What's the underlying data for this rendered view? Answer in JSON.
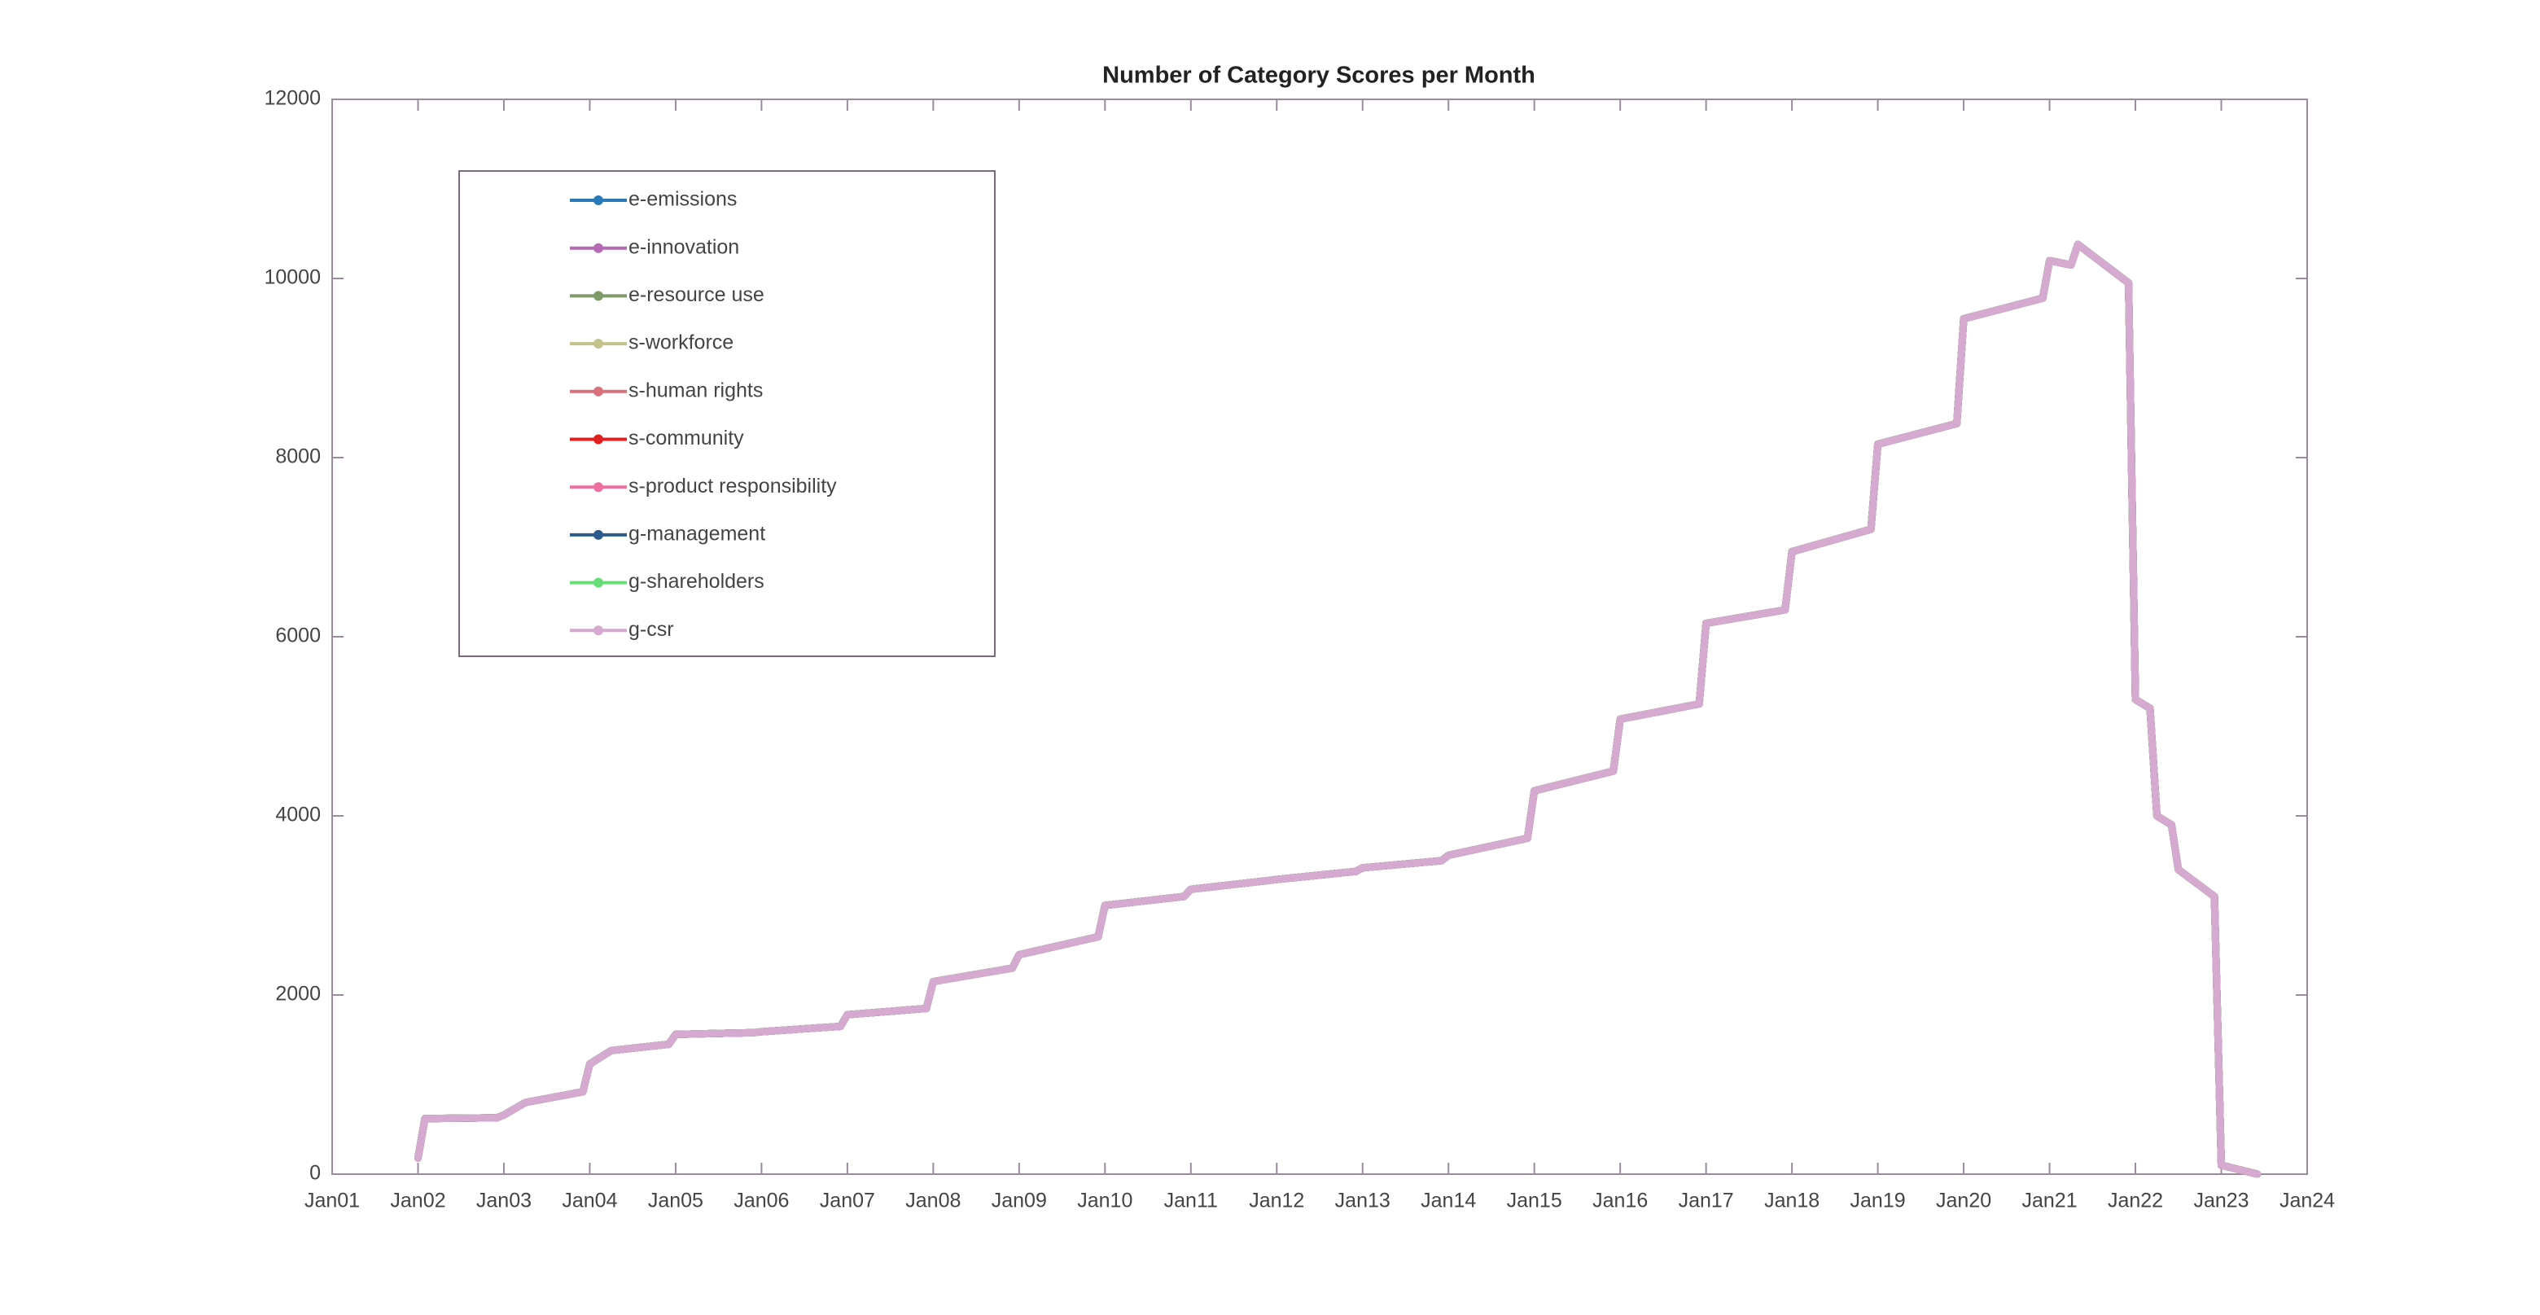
{
  "chart_data": {
    "type": "line",
    "title": "Number of  Category Scores per Month",
    "x": [
      2002.0,
      2002.08,
      2002.92,
      2003.0,
      2003.25,
      2003.92,
      2004.0,
      2004.25,
      2004.92,
      2005.0,
      2005.92,
      2006.0,
      2006.92,
      2007.0,
      2007.92,
      2008.0,
      2008.92,
      2009.0,
      2009.92,
      2010.0,
      2010.92,
      2011.0,
      2011.92,
      2012.0,
      2012.92,
      2013.0,
      2013.92,
      2014.0,
      2014.92,
      2015.0,
      2015.92,
      2016.0,
      2016.92,
      2017.0,
      2017.92,
      2018.0,
      2018.92,
      2019.0,
      2019.92,
      2020.0,
      2020.92,
      2021.0,
      2021.25,
      2021.33,
      2021.92,
      2022.0,
      2022.17,
      2022.25,
      2022.42,
      2022.5,
      2022.92,
      2023.0,
      2023.42
    ],
    "series": [
      {
        "name": "e-emissions",
        "color": "#2a7ab9",
        "values": [
          180,
          620,
          630,
          660,
          800,
          920,
          1230,
          1380,
          1450,
          1560,
          1580,
          1590,
          1650,
          1780,
          1850,
          2150,
          2300,
          2450,
          2650,
          3000,
          3100,
          3180,
          3280,
          3290,
          3380,
          3420,
          3500,
          3560,
          3750,
          4280,
          4500,
          5080,
          5250,
          6150,
          6300,
          6950,
          7200,
          8150,
          8380,
          9550,
          9780,
          10200,
          10150,
          10380,
          9950,
          5300,
          5200,
          4000,
          3900,
          3400,
          3100,
          100,
          0
        ]
      },
      {
        "name": "e-innovation",
        "color": "#b56bb3",
        "values": [
          180,
          620,
          630,
          660,
          800,
          920,
          1230,
          1380,
          1450,
          1560,
          1580,
          1590,
          1650,
          1780,
          1850,
          2150,
          2300,
          2450,
          2650,
          3000,
          3100,
          3180,
          3280,
          3290,
          3380,
          3420,
          3500,
          3560,
          3750,
          4280,
          4500,
          5080,
          5250,
          6150,
          6300,
          6950,
          7200,
          8150,
          8380,
          9550,
          9780,
          10200,
          10150,
          10380,
          9950,
          5300,
          5200,
          4000,
          3900,
          3400,
          3100,
          100,
          0
        ]
      },
      {
        "name": "e-resource use",
        "color": "#7f9a6a",
        "values": [
          180,
          620,
          630,
          660,
          800,
          920,
          1230,
          1380,
          1450,
          1560,
          1580,
          1590,
          1650,
          1780,
          1850,
          2150,
          2300,
          2450,
          2650,
          3000,
          3100,
          3180,
          3280,
          3290,
          3380,
          3420,
          3500,
          3560,
          3750,
          4280,
          4500,
          5080,
          5250,
          6150,
          6300,
          6950,
          7200,
          8150,
          8380,
          9550,
          9780,
          10200,
          10150,
          10380,
          9950,
          5300,
          5200,
          4000,
          3900,
          3400,
          3100,
          100,
          0
        ]
      },
      {
        "name": "s-workforce",
        "color": "#c4c38c",
        "values": [
          180,
          620,
          630,
          660,
          800,
          920,
          1230,
          1380,
          1450,
          1560,
          1580,
          1590,
          1650,
          1780,
          1850,
          2150,
          2300,
          2450,
          2650,
          3000,
          3100,
          3180,
          3280,
          3290,
          3380,
          3420,
          3500,
          3560,
          3750,
          4280,
          4500,
          5080,
          5250,
          6150,
          6300,
          6950,
          7200,
          8150,
          8380,
          9550,
          9780,
          10200,
          10150,
          10380,
          9950,
          5300,
          5200,
          4000,
          3900,
          3400,
          3100,
          100,
          0
        ]
      },
      {
        "name": "s-human rights",
        "color": "#d9707a",
        "values": [
          180,
          620,
          630,
          660,
          800,
          920,
          1230,
          1380,
          1450,
          1560,
          1580,
          1590,
          1650,
          1780,
          1850,
          2150,
          2300,
          2450,
          2650,
          3000,
          3100,
          3180,
          3280,
          3290,
          3380,
          3420,
          3500,
          3560,
          3750,
          4280,
          4500,
          5080,
          5250,
          6150,
          6300,
          6950,
          7200,
          8150,
          8380,
          9550,
          9780,
          10200,
          10150,
          10380,
          9950,
          5300,
          5200,
          4000,
          3900,
          3400,
          3100,
          100,
          0
        ]
      },
      {
        "name": "s-community",
        "color": "#e02020",
        "values": [
          180,
          620,
          630,
          660,
          800,
          920,
          1230,
          1380,
          1450,
          1560,
          1580,
          1590,
          1650,
          1780,
          1850,
          2150,
          2300,
          2450,
          2650,
          3000,
          3100,
          3180,
          3280,
          3290,
          3380,
          3420,
          3500,
          3560,
          3750,
          4280,
          4500,
          5080,
          5250,
          6150,
          6300,
          6950,
          7200,
          8150,
          8380,
          9550,
          9780,
          10200,
          10150,
          10380,
          9950,
          5300,
          5200,
          4000,
          3900,
          3400,
          3100,
          100,
          0
        ]
      },
      {
        "name": "s-product responsibility",
        "color": "#ee6fa0",
        "values": [
          180,
          620,
          630,
          660,
          800,
          920,
          1230,
          1380,
          1450,
          1560,
          1580,
          1590,
          1650,
          1780,
          1850,
          2150,
          2300,
          2450,
          2650,
          3000,
          3100,
          3180,
          3280,
          3290,
          3380,
          3420,
          3500,
          3560,
          3750,
          4280,
          4500,
          5080,
          5250,
          6150,
          6300,
          6950,
          7200,
          8150,
          8380,
          9550,
          9780,
          10200,
          10150,
          10380,
          9950,
          5300,
          5200,
          4000,
          3900,
          3400,
          3100,
          100,
          0
        ]
      },
      {
        "name": "g-management",
        "color": "#2b5b8c",
        "values": [
          180,
          620,
          630,
          660,
          800,
          920,
          1230,
          1380,
          1450,
          1560,
          1580,
          1590,
          1650,
          1780,
          1850,
          2150,
          2300,
          2450,
          2650,
          3000,
          3100,
          3180,
          3280,
          3290,
          3380,
          3420,
          3500,
          3560,
          3750,
          4280,
          4500,
          5080,
          5250,
          6150,
          6300,
          6950,
          7200,
          8150,
          8380,
          9550,
          9780,
          10200,
          10150,
          10380,
          9950,
          5300,
          5200,
          4000,
          3900,
          3400,
          3100,
          100,
          0
        ]
      },
      {
        "name": "g-shareholders",
        "color": "#66dd77",
        "values": [
          180,
          620,
          630,
          660,
          800,
          920,
          1230,
          1380,
          1450,
          1560,
          1580,
          1590,
          1650,
          1780,
          1850,
          2150,
          2300,
          2450,
          2650,
          3000,
          3100,
          3180,
          3280,
          3290,
          3380,
          3420,
          3500,
          3560,
          3750,
          4280,
          4500,
          5080,
          5250,
          6150,
          6300,
          6950,
          7200,
          8150,
          8380,
          9550,
          9780,
          10200,
          10150,
          10380,
          9950,
          5300,
          5200,
          4000,
          3900,
          3400,
          3100,
          100,
          0
        ]
      },
      {
        "name": "g-csr",
        "color": "#d6aad0",
        "values": [
          180,
          620,
          630,
          660,
          800,
          920,
          1230,
          1380,
          1450,
          1560,
          1580,
          1590,
          1650,
          1780,
          1850,
          2150,
          2300,
          2450,
          2650,
          3000,
          3100,
          3180,
          3280,
          3290,
          3380,
          3420,
          3500,
          3560,
          3750,
          4280,
          4500,
          5080,
          5250,
          6150,
          6300,
          6950,
          7200,
          8150,
          8380,
          9550,
          9780,
          10200,
          10150,
          10380,
          9950,
          5300,
          5200,
          4000,
          3900,
          3400,
          3100,
          100,
          0
        ]
      }
    ],
    "xlim": [
      2001,
      2024
    ],
    "xticks": [
      {
        "value": 2001,
        "label": "Jan01"
      },
      {
        "value": 2002,
        "label": "Jan02"
      },
      {
        "value": 2003,
        "label": "Jan03"
      },
      {
        "value": 2004,
        "label": "Jan04"
      },
      {
        "value": 2005,
        "label": "Jan05"
      },
      {
        "value": 2006,
        "label": "Jan06"
      },
      {
        "value": 2007,
        "label": "Jan07"
      },
      {
        "value": 2008,
        "label": "Jan08"
      },
      {
        "value": 2009,
        "label": "Jan09"
      },
      {
        "value": 2010,
        "label": "Jan10"
      },
      {
        "value": 2011,
        "label": "Jan11"
      },
      {
        "value": 2012,
        "label": "Jan12"
      },
      {
        "value": 2013,
        "label": "Jan13"
      },
      {
        "value": 2014,
        "label": "Jan14"
      },
      {
        "value": 2015,
        "label": "Jan15"
      },
      {
        "value": 2016,
        "label": "Jan16"
      },
      {
        "value": 2017,
        "label": "Jan17"
      },
      {
        "value": 2018,
        "label": "Jan18"
      },
      {
        "value": 2019,
        "label": "Jan19"
      },
      {
        "value": 2020,
        "label": "Jan20"
      },
      {
        "value": 2021,
        "label": "Jan21"
      },
      {
        "value": 2022,
        "label": "Jan22"
      },
      {
        "value": 2023,
        "label": "Jan23"
      },
      {
        "value": 2024,
        "label": "Jan24"
      }
    ],
    "ylim": [
      0,
      12000
    ],
    "yticks": [
      0,
      2000,
      4000,
      6000,
      8000,
      10000,
      12000
    ],
    "legend": "upper left"
  }
}
